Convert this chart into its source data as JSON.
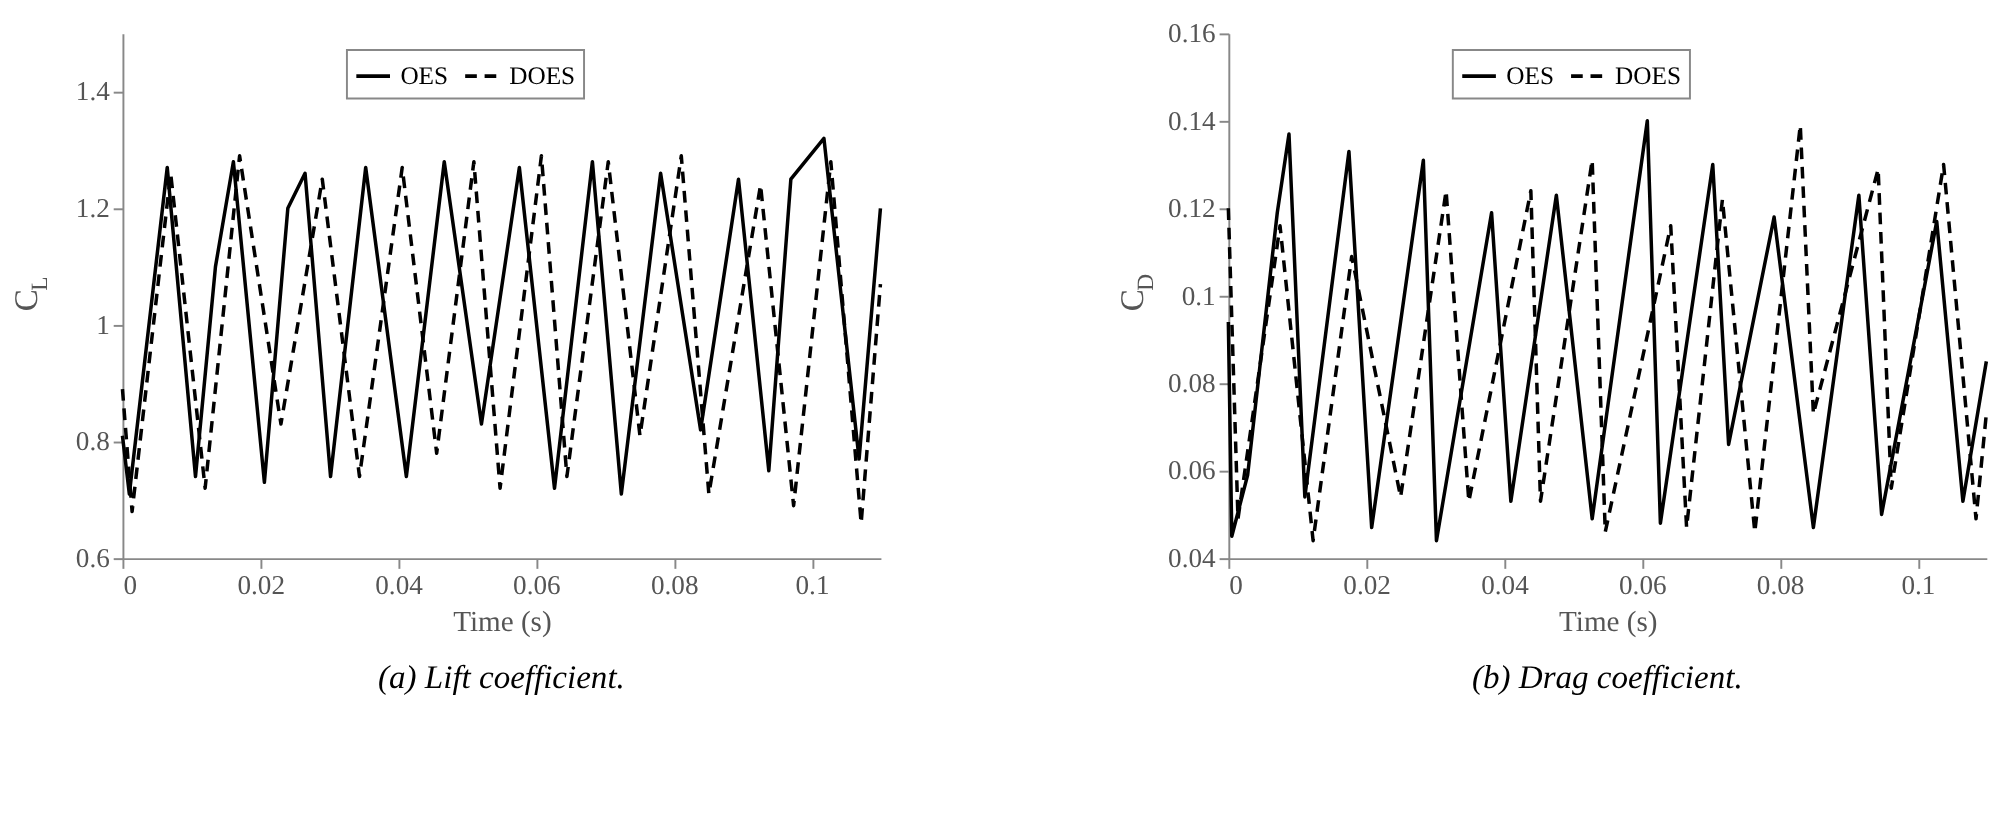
{
  "chart_data": [
    {
      "type": "line",
      "title": "(a) Lift coefficient.",
      "xlabel": "Time (s)",
      "ylabel": "C$_{L}$",
      "xlim": [
        0,
        0.11
      ],
      "xticks": [
        0,
        0.02,
        0.04,
        0.06,
        0.08,
        0.1
      ],
      "ylim": [
        0.6,
        1.5
      ],
      "yticks": [
        0.6,
        0.8,
        1,
        1.2,
        1.4
      ],
      "legend": "top",
      "grid": false,
      "series": [
        {
          "name": "OES",
          "color": "#000000",
          "line_style": "solid",
          "x": [
            0,
            0.001,
            0.0065,
            0.0106,
            0.0135,
            0.0161,
            0.0206,
            0.024,
            0.0265,
            0.0302,
            0.0353,
            0.0412,
            0.0467,
            0.0521,
            0.0576,
            0.0627,
            0.0682,
            0.0724,
            0.0781,
            0.0839,
            0.0894,
            0.0938,
            0.097,
            0.1018,
            0.1069,
            0.11
          ],
          "values": [
            0.81,
            0.71,
            1.27,
            0.74,
            1.1,
            1.28,
            0.73,
            1.2,
            1.26,
            0.74,
            1.27,
            0.74,
            1.28,
            0.83,
            1.27,
            0.72,
            1.28,
            0.71,
            1.26,
            0.82,
            1.25,
            0.75,
            1.25,
            1.32,
            0.77,
            1.2
          ]
        },
        {
          "name": "DOES",
          "color": "#000000",
          "line_style": "dashed",
          "x": [
            0,
            0.0014,
            0.007,
            0.012,
            0.017,
            0.023,
            0.029,
            0.0344,
            0.0406,
            0.0456,
            0.051,
            0.0548,
            0.0608,
            0.0645,
            0.0705,
            0.0751,
            0.0811,
            0.0851,
            0.0926,
            0.0974,
            0.1028,
            0.1072,
            0.11
          ],
          "values": [
            0.89,
            0.68,
            1.26,
            0.72,
            1.29,
            0.83,
            1.25,
            0.74,
            1.27,
            0.78,
            1.28,
            0.72,
            1.29,
            0.74,
            1.28,
            0.81,
            1.29,
            0.71,
            1.24,
            0.69,
            1.28,
            0.66,
            1.07
          ]
        }
      ]
    },
    {
      "type": "line",
      "title": "(b) Drag coefficient.",
      "xlabel": "Time (s)",
      "ylabel": "C$_{D}$",
      "xlim": [
        0,
        0.11
      ],
      "xticks": [
        0,
        0.02,
        0.04,
        0.06,
        0.08,
        0.1
      ],
      "ylim": [
        0.04,
        0.16
      ],
      "yticks": [
        0.04,
        0.06,
        0.08,
        0.1,
        0.12,
        0.14,
        0.16
      ],
      "legend": "top",
      "grid": false,
      "series": [
        {
          "name": "OES",
          "color": "#000000",
          "line_style": "solid",
          "x": [
            0,
            0.0005,
            0.0028,
            0.0071,
            0.0088,
            0.0111,
            0.0175,
            0.0208,
            0.0283,
            0.0302,
            0.0382,
            0.041,
            0.0476,
            0.0528,
            0.0608,
            0.0627,
            0.0703,
            0.0726,
            0.0792,
            0.0849,
            0.0915,
            0.0948,
            0.1028,
            0.1066,
            0.11
          ],
          "values": [
            0.094,
            0.045,
            0.059,
            0.119,
            0.137,
            0.054,
            0.133,
            0.047,
            0.131,
            0.044,
            0.119,
            0.053,
            0.123,
            0.049,
            0.14,
            0.048,
            0.13,
            0.066,
            0.118,
            0.047,
            0.123,
            0.05,
            0.117,
            0.053,
            0.085
          ]
        },
        {
          "name": "DOES",
          "color": "#000000",
          "line_style": "dashed",
          "x": [
            0,
            0.0014,
            0.0075,
            0.0123,
            0.0179,
            0.025,
            0.0316,
            0.0349,
            0.0439,
            0.0453,
            0.0528,
            0.0547,
            0.0642,
            0.0665,
            0.0717,
            0.0764,
            0.083,
            0.0849,
            0.0943,
            0.0962,
            0.1038,
            0.1085,
            0.11
          ],
          "values": [
            0.12,
            0.049,
            0.116,
            0.044,
            0.109,
            0.054,
            0.124,
            0.053,
            0.124,
            0.053,
            0.131,
            0.046,
            0.116,
            0.047,
            0.122,
            0.046,
            0.139,
            0.073,
            0.129,
            0.056,
            0.13,
            0.049,
            0.073
          ]
        }
      ]
    }
  ]
}
